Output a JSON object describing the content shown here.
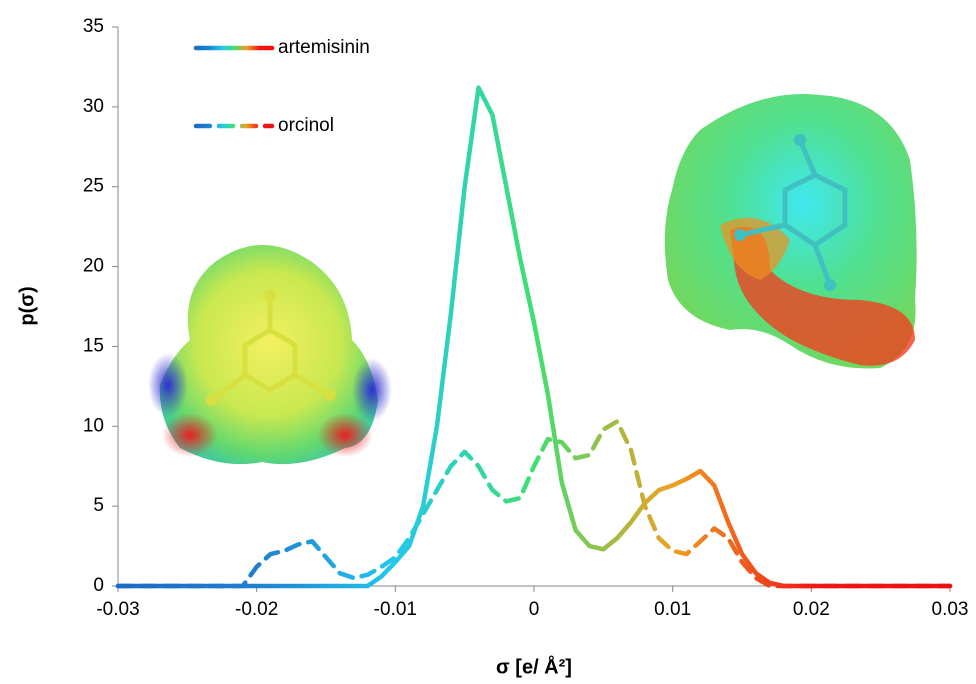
{
  "chart_data": {
    "type": "line",
    "x_label": "σ [e/ Å²]",
    "y_label": "p(σ)",
    "x": [
      -0.03,
      -0.029,
      -0.028,
      -0.027,
      -0.026,
      -0.025,
      -0.024,
      -0.023,
      -0.022,
      -0.021,
      -0.02,
      -0.019,
      -0.018,
      -0.017,
      -0.016,
      -0.015,
      -0.014,
      -0.013,
      -0.012,
      -0.011,
      -0.01,
      -0.009,
      -0.008,
      -0.007,
      -0.006,
      -0.005,
      -0.004,
      -0.003,
      -0.002,
      -0.001,
      0,
      0.001,
      0.002,
      0.003,
      0.004,
      0.005,
      0.006,
      0.007,
      0.008,
      0.009,
      0.01,
      0.011,
      0.012,
      0.013,
      0.014,
      0.015,
      0.016,
      0.017,
      0.018,
      0.019,
      0.02,
      0.021,
      0.022,
      0.023,
      0.024,
      0.025,
      0.026,
      0.027,
      0.028,
      0.029,
      0.03
    ],
    "colors": [
      "#1a6cc4",
      "#1f7fd0",
      "#22c8ee",
      "#3ee070",
      "#f0a020",
      "#f01818",
      "#f01010"
    ],
    "series": [
      {
        "name": "artemisinin",
        "dash": "solid",
        "values": [
          0,
          0,
          0,
          0,
          0,
          0,
          0,
          0,
          0,
          0,
          0,
          0,
          0,
          0,
          0,
          0,
          0,
          0,
          0,
          0.6,
          1.5,
          2.5,
          5,
          10,
          17,
          25,
          31.2,
          29.5,
          25,
          20.5,
          16.5,
          12,
          6.5,
          3.5,
          2.5,
          2.3,
          3,
          4,
          5.2,
          6,
          6.3,
          6.7,
          7.2,
          6.3,
          4,
          2,
          0.8,
          0.2,
          0,
          0,
          0,
          0,
          0,
          0,
          0,
          0,
          0,
          0,
          0,
          0,
          0
        ]
      },
      {
        "name": "orcinol",
        "dash": "dashed",
        "values": [
          0,
          0,
          0,
          0,
          0,
          0,
          0,
          0,
          0,
          0,
          1.2,
          2,
          2.2,
          2.6,
          2.8,
          1.8,
          0.8,
          0.5,
          0.7,
          1.2,
          1.8,
          3,
          4.5,
          6,
          7.5,
          8.4,
          7.5,
          6,
          5.3,
          5.5,
          7.5,
          9.2,
          9,
          8,
          8.2,
          9.8,
          10.3,
          8.5,
          5,
          3,
          2.2,
          2.0,
          2.8,
          3.6,
          3,
          1.5,
          0.5,
          0,
          0,
          0,
          0,
          0,
          0,
          0,
          0,
          0,
          0,
          0,
          0,
          0,
          0
        ]
      }
    ],
    "xlim": [
      -0.03,
      0.03
    ],
    "xticks": [
      -0.03,
      -0.02,
      -0.01,
      0,
      0.01,
      0.02,
      0.03
    ],
    "ylim": [
      0,
      35
    ],
    "yticks": [
      0,
      5,
      10,
      15,
      20,
      25,
      30,
      35
    ],
    "legend": "upper left"
  }
}
